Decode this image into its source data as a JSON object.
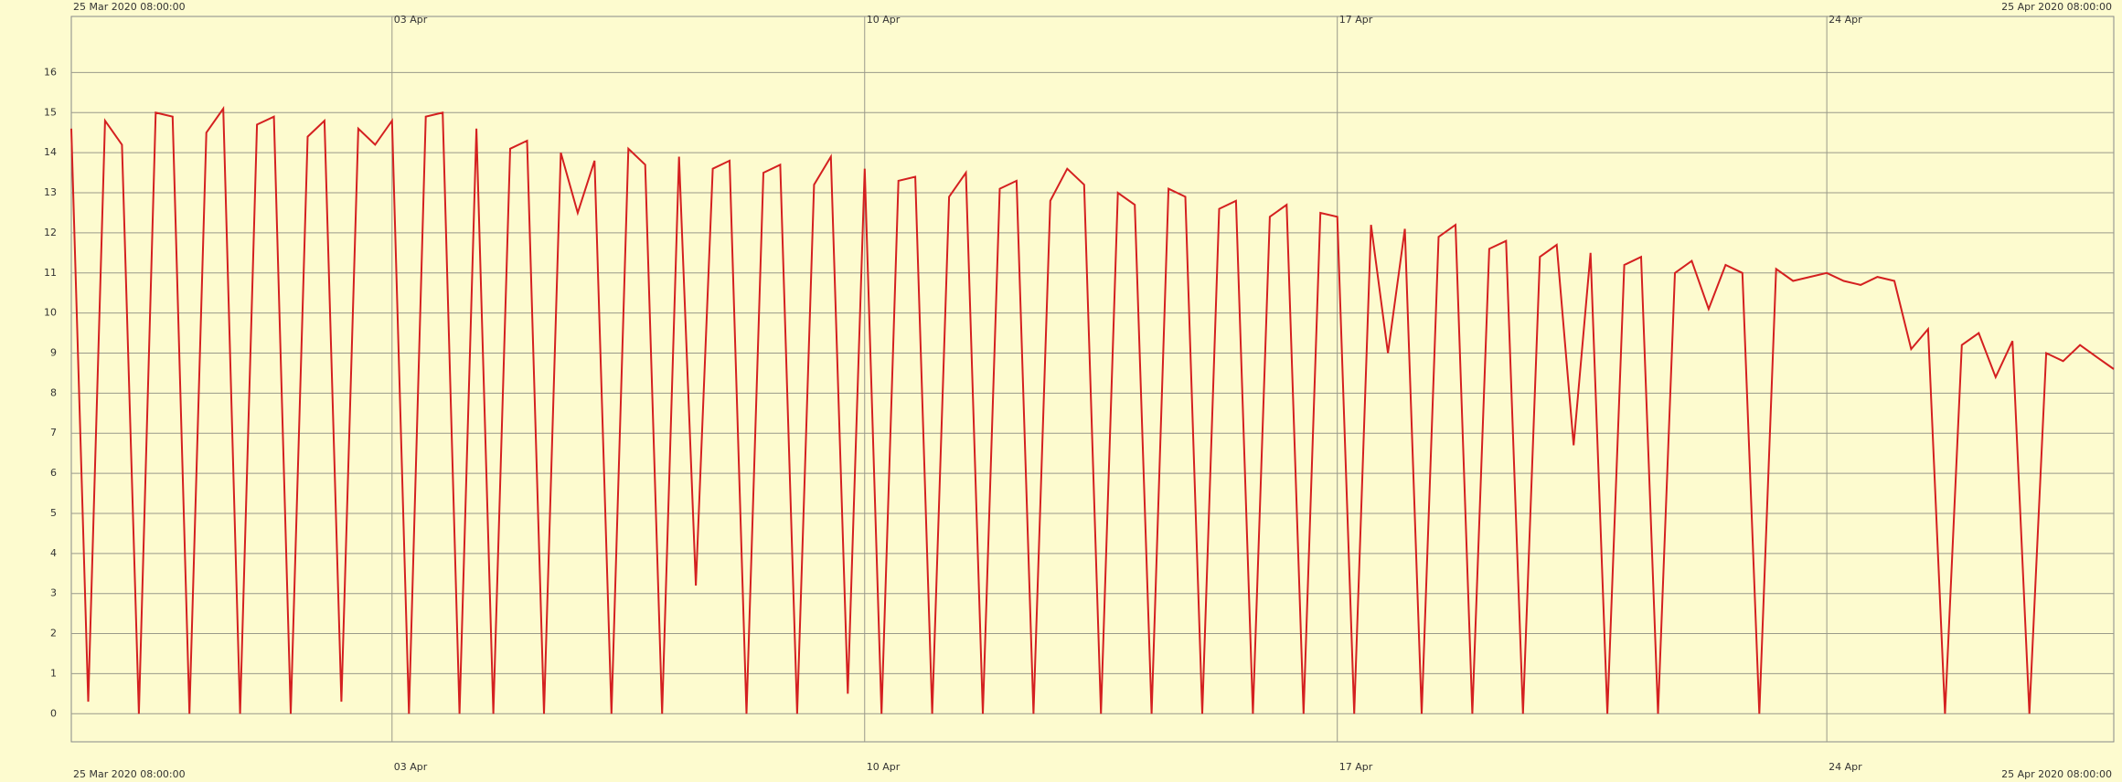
{
  "chart_data": {
    "type": "line",
    "range_start": "25 Mar 2020 08:00:00",
    "range_end": "25 Apr 2020 08:00:00",
    "color": "#d42020",
    "background": "#fdfbcf",
    "grid": true,
    "ylim": [
      -0.7,
      17.4
    ],
    "yticks": [
      0,
      1,
      2,
      3,
      4,
      5,
      6,
      7,
      8,
      9,
      10,
      11,
      12,
      13,
      14,
      15,
      16
    ],
    "xlim": [
      0,
      121
    ],
    "xticks": [
      {
        "value": 19,
        "label": "03 Apr"
      },
      {
        "value": 47,
        "label": "10 Apr"
      },
      {
        "value": 75,
        "label": "17 Apr"
      },
      {
        "value": 104,
        "label": "24 Apr"
      }
    ],
    "values": [
      14.6,
      0.3,
      14.8,
      14.2,
      0,
      15,
      14.9,
      0,
      14.5,
      15.1,
      0,
      14.7,
      14.9,
      0,
      14.4,
      14.8,
      0.3,
      14.6,
      14.2,
      14.8,
      0,
      14.9,
      15,
      0,
      14.6,
      0,
      14.1,
      14.3,
      0,
      14,
      12.5,
      13.8,
      0,
      14.1,
      13.7,
      0,
      13.9,
      3.2,
      13.6,
      13.8,
      0,
      13.5,
      13.7,
      0,
      13.2,
      13.9,
      0.5,
      13.6,
      0,
      13.3,
      13.4,
      0,
      12.9,
      13.5,
      0,
      13.1,
      13.3,
      0,
      12.8,
      13.6,
      13.2,
      0,
      13,
      12.7,
      0,
      13.1,
      12.9,
      0,
      12.6,
      12.8,
      0,
      12.4,
      12.7,
      0,
      12.5,
      12.4,
      0,
      12.2,
      9.0,
      12.1,
      0,
      11.9,
      12.2,
      0,
      11.6,
      11.8,
      0,
      11.4,
      11.7,
      6.7,
      11.5,
      0,
      11.2,
      11.4,
      0,
      11,
      11.3,
      10.1,
      11.2,
      11,
      0,
      11.1,
      10.8,
      10.9,
      11,
      10.8,
      10.7,
      10.9,
      10.8,
      9.1,
      9.6,
      0,
      9.2,
      9.5,
      8.4,
      9.3,
      0,
      9,
      8.8,
      9.2,
      8.9,
      8.6
    ]
  }
}
